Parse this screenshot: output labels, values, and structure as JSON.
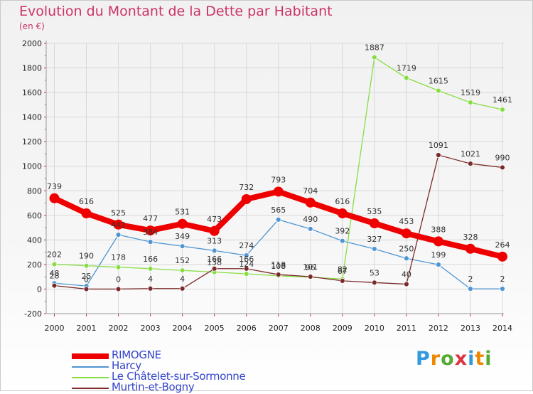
{
  "title": "Evolution du Montant de la Dette par Habitant",
  "subtitle": "(en €)",
  "brand": {
    "text": "Proxiti"
  },
  "chart_data": {
    "type": "line",
    "categories": [
      "2000",
      "2001",
      "2002",
      "2003",
      "2004",
      "2005",
      "2006",
      "2007",
      "2008",
      "2009",
      "2010",
      "2011",
      "2012",
      "2013",
      "2014"
    ],
    "ylim": [
      -200,
      2000
    ],
    "yticks": [
      -200,
      0,
      200,
      400,
      600,
      800,
      1000,
      1200,
      1400,
      1600,
      1800,
      2000
    ],
    "grid": true,
    "legend_position": "bottom-left",
    "series": [
      {
        "name": "RIMOGNE",
        "color": "#ee0000",
        "emphasis": true,
        "values": [
          739,
          616,
          525,
          477,
          531,
          473,
          732,
          793,
          704,
          616,
          535,
          453,
          388,
          328,
          264
        ]
      },
      {
        "name": "Harcy",
        "color": "#4f95d3",
        "emphasis": false,
        "values": [
          48,
          25,
          442,
          384,
          349,
          313,
          274,
          565,
          490,
          392,
          327,
          250,
          199,
          2,
          2
        ]
      },
      {
        "name": "Le Châtelet-sur-Sormonne",
        "color": "#88dd44",
        "emphasis": false,
        "values": [
          202,
          190,
          178,
          166,
          152,
          138,
          124,
          108,
          96,
          82,
          1887,
          1719,
          1615,
          1519,
          1461
        ]
      },
      {
        "name": "Murtin-et-Bogny",
        "color": "#7a2a2a",
        "emphasis": false,
        "values": [
          28,
          0,
          0,
          4,
          4,
          166,
          166,
          118,
          101,
          67,
          53,
          40,
          1091,
          1021,
          990
        ]
      }
    ]
  }
}
